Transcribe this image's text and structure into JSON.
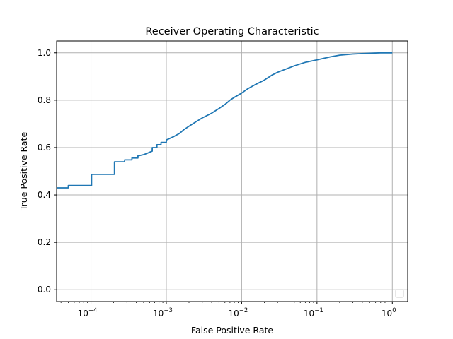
{
  "chart_data": {
    "type": "line",
    "title": "Receiver Operating Characteristic",
    "xlabel": "False Positive Rate",
    "ylabel": "True Positive Rate",
    "xscale": "log",
    "xlim": [
      3.5e-05,
      1.6
    ],
    "ylim": [
      -0.05,
      1.05
    ],
    "grid": true,
    "legend": {
      "placement": "lower right",
      "entries": []
    },
    "colors": {
      "line": "#1f77b4",
      "grid": "#b0b0b0",
      "axes": "#000000"
    },
    "x_ticks": [
      {
        "value": 0.0001,
        "base": "10",
        "exp": "−4"
      },
      {
        "value": 0.001,
        "base": "10",
        "exp": "−3"
      },
      {
        "value": 0.01,
        "base": "10",
        "exp": "−2"
      },
      {
        "value": 0.1,
        "base": "10",
        "exp": "−1"
      },
      {
        "value": 1,
        "base": "10",
        "exp": "0"
      }
    ],
    "y_ticks": [
      {
        "value": 0.0,
        "label": "0.0"
      },
      {
        "value": 0.2,
        "label": "0.2"
      },
      {
        "value": 0.4,
        "label": "0.4"
      },
      {
        "value": 0.6,
        "label": "0.6"
      },
      {
        "value": 0.8,
        "label": "0.8"
      },
      {
        "value": 1.0,
        "label": "1.0"
      }
    ],
    "series": [
      {
        "x": [
          3.5e-05,
          5e-05,
          5e-05,
          0.000102,
          0.000102,
          0.000205,
          0.000205,
          0.00028,
          0.00028,
          0.00035,
          0.00035,
          0.00042,
          0.00042,
          0.0005,
          0.00055,
          0.00065,
          0.00065,
          0.00075,
          0.00075,
          0.00085,
          0.00085,
          0.001,
          0.001,
          0.00125,
          0.0015,
          0.0017,
          0.002,
          0.0025,
          0.003,
          0.004,
          0.005,
          0.006,
          0.007,
          0.008,
          0.01,
          0.012,
          0.015,
          0.02,
          0.025,
          0.03,
          0.04,
          0.05,
          0.07,
          0.1,
          0.15,
          0.2,
          0.3,
          0.5,
          0.7,
          1.0
        ],
        "y": [
          0.43,
          0.43,
          0.44,
          0.44,
          0.487,
          0.487,
          0.54,
          0.54,
          0.548,
          0.548,
          0.556,
          0.556,
          0.565,
          0.57,
          0.575,
          0.585,
          0.6,
          0.6,
          0.612,
          0.612,
          0.622,
          0.622,
          0.632,
          0.646,
          0.66,
          0.675,
          0.69,
          0.71,
          0.725,
          0.745,
          0.765,
          0.782,
          0.8,
          0.812,
          0.83,
          0.848,
          0.865,
          0.885,
          0.905,
          0.918,
          0.933,
          0.945,
          0.96,
          0.97,
          0.983,
          0.99,
          0.995,
          0.998,
          1.0,
          1.0
        ]
      }
    ]
  }
}
